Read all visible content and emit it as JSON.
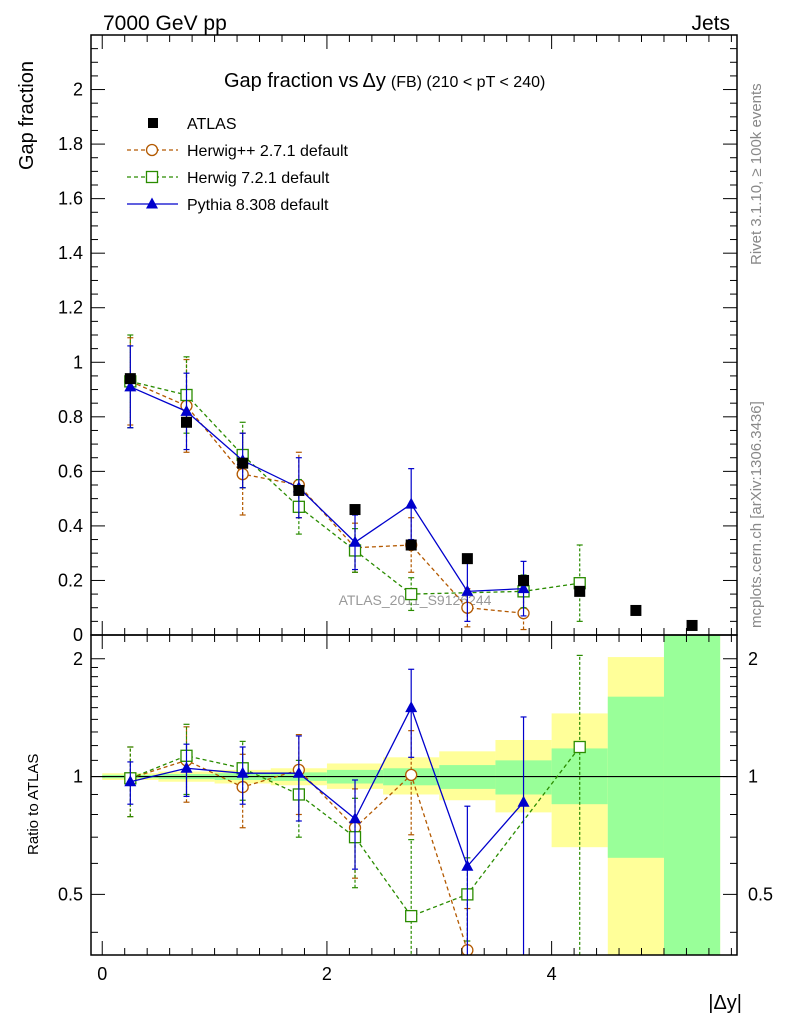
{
  "header": {
    "left": "7000 GeV pp",
    "right": "Jets"
  },
  "side_labels": {
    "top": "Rivet 3.1.10, ≥ 100k events",
    "bottom": "mcplots.cern.ch [arXiv:1306.3436]"
  },
  "watermark": "ATLAS_2011_S9126244",
  "colors": {
    "atlas": "#000000",
    "herwigpp": "#b35900",
    "herwig7": "#2a8c00",
    "pythia": "#0000cc",
    "band_inner": "#99ff99",
    "band_outer": "#ffff99"
  },
  "chart_data": [
    {
      "type": "scatter",
      "title_parts": {
        "main": "Gap fraction vs",
        "delta": "Δy",
        "sub": "(FB) (210 < pT < 240)"
      },
      "xlabel": "|Δy|",
      "ylabel": "Gap fraction",
      "xlim": [
        -0.1,
        5.65
      ],
      "ylim": [
        0,
        2.2
      ],
      "y_ticks": [
        "0",
        "0.2",
        "0.4",
        "0.6",
        "0.8",
        "1",
        "1.2",
        "1.4",
        "1.6",
        "1.8",
        "2"
      ],
      "legend_position": "top-left",
      "series": [
        {
          "name": "ATLAS",
          "style": "data",
          "x": [
            0.25,
            0.75,
            1.25,
            1.75,
            2.25,
            2.75,
            3.25,
            3.75,
            4.25,
            4.75,
            5.25
          ],
          "y": [
            0.94,
            0.78,
            0.63,
            0.53,
            0.46,
            0.33,
            0.28,
            0.2,
            0.16,
            0.09,
            0.035
          ]
        },
        {
          "name": "Herwig++ 2.7.1 default",
          "style": "circle",
          "x": [
            0.25,
            0.75,
            1.25,
            1.75,
            2.25,
            2.75,
            3.25,
            3.75
          ],
          "y": [
            0.93,
            0.84,
            0.59,
            0.55,
            0.32,
            0.33,
            0.1,
            0.08
          ],
          "err": [
            0.16,
            0.17,
            0.15,
            0.12,
            0.09,
            0.1,
            0.07,
            0.06
          ]
        },
        {
          "name": "Herwig 7.2.1 default",
          "style": "square",
          "x": [
            0.25,
            0.75,
            1.25,
            1.75,
            2.25,
            2.75,
            3.75,
            4.25
          ],
          "y": [
            0.93,
            0.88,
            0.66,
            0.47,
            0.31,
            0.15,
            0.16,
            0.19
          ],
          "err": [
            0.17,
            0.14,
            0.12,
            0.1,
            0.08,
            0.06,
            0.06,
            0.14
          ]
        },
        {
          "name": "Pythia 8.308 default",
          "style": "triangle",
          "x": [
            0.25,
            0.75,
            1.25,
            1.75,
            2.25,
            2.75,
            3.25,
            3.75
          ],
          "y": [
            0.91,
            0.82,
            0.64,
            0.54,
            0.34,
            0.48,
            0.16,
            0.17
          ],
          "err": [
            0.15,
            0.14,
            0.1,
            0.11,
            0.1,
            0.13,
            0.11,
            0.1
          ]
        }
      ]
    },
    {
      "type": "scatter",
      "ylabel": "Ratio to ATLAS",
      "xlabel": "|Δy|",
      "xlim": [
        -0.1,
        5.65
      ],
      "ylim": [
        0.35,
        2.3
      ],
      "x_ticks": [
        "0",
        "2",
        "4"
      ],
      "y_ticks": [
        "0.5",
        "1",
        "2"
      ],
      "bands": {
        "x_edges": [
          0,
          0.5,
          1.0,
          1.5,
          2.0,
          2.5,
          3.0,
          3.5,
          4.0,
          4.5,
          5.0,
          5.5
        ],
        "inner": [
          [
            0.99,
            1.01
          ],
          [
            0.985,
            1.015
          ],
          [
            0.98,
            1.02
          ],
          [
            0.975,
            1.025
          ],
          [
            0.96,
            1.04
          ],
          [
            0.95,
            1.05
          ],
          [
            0.93,
            1.07
          ],
          [
            0.9,
            1.1
          ],
          [
            0.85,
            1.18
          ],
          [
            0.62,
            1.6
          ],
          [
            0.35,
            2.3
          ]
        ],
        "outer": [
          [
            0.98,
            1.02
          ],
          [
            0.97,
            1.03
          ],
          [
            0.96,
            1.04
          ],
          [
            0.95,
            1.05
          ],
          [
            0.93,
            1.08
          ],
          [
            0.9,
            1.12
          ],
          [
            0.87,
            1.16
          ],
          [
            0.81,
            1.24
          ],
          [
            0.66,
            1.45
          ],
          [
            0.35,
            2.02
          ],
          [
            0.35,
            2.3
          ]
        ]
      },
      "series": [
        {
          "name": "Herwig++ 2.7.1 default",
          "style": "circle",
          "x": [
            0.25,
            0.75,
            1.25,
            1.75,
            2.25,
            2.75,
            3.25
          ],
          "y": [
            0.99,
            1.1,
            0.94,
            1.04,
            0.74,
            1.01,
            0.36
          ],
          "err": [
            0.2,
            0.24,
            0.2,
            0.24,
            0.19,
            0.3,
            0.1
          ]
        },
        {
          "name": "Herwig 7.2.1 default",
          "style": "square",
          "x": [
            0.25,
            0.75,
            1.25,
            1.75,
            2.25,
            2.75,
            3.25,
            4.25
          ],
          "y": [
            0.99,
            1.13,
            1.05,
            0.9,
            0.7,
            0.44,
            0.5,
            1.19
          ],
          "err": [
            0.2,
            0.23,
            0.18,
            0.2,
            0.18,
            0.25,
            0.12,
            0.85
          ]
        },
        {
          "name": "Pythia 8.308 default",
          "style": "triangle",
          "x": [
            0.25,
            0.75,
            1.25,
            1.75,
            2.25,
            2.75,
            3.25,
            3.75
          ],
          "y": [
            0.97,
            1.05,
            1.02,
            1.02,
            0.78,
            1.5,
            0.59,
            0.86
          ],
          "err": [
            0.12,
            0.16,
            0.17,
            0.25,
            0.2,
            0.38,
            0.25,
            0.56
          ]
        }
      ]
    }
  ]
}
